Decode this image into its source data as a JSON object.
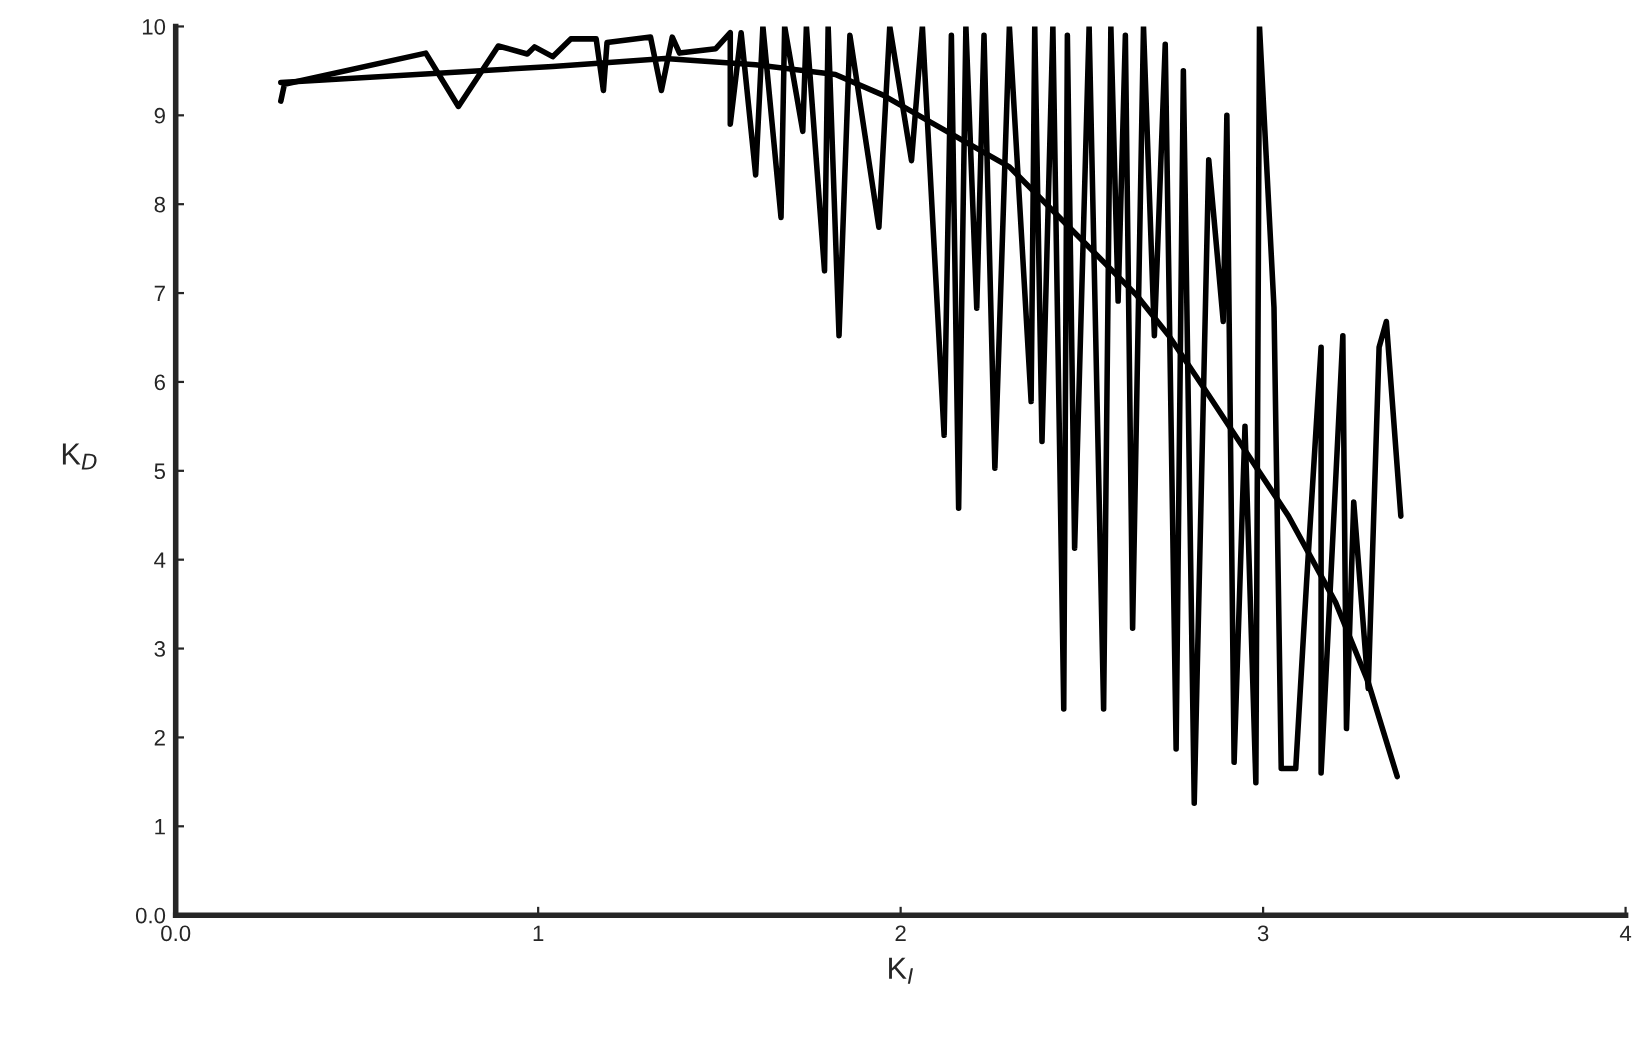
{
  "chart_data": {
    "type": "line",
    "xlabel": "K$_{I}$",
    "ylabel": "K$_{D}$",
    "xlim": [
      0,
      4
    ],
    "ylim": [
      0,
      10
    ],
    "xticks": [
      {
        "value": 0,
        "label": "0.0"
      },
      1,
      2,
      3,
      4
    ],
    "yticks": [
      {
        "value": 0,
        "label": "0.0"
      },
      1,
      2,
      3,
      4,
      5,
      6,
      7,
      8,
      9,
      10
    ],
    "grid": false,
    "marker": "none",
    "line_style": "solid",
    "series": [
      {
        "color": "#000000",
        "x": [
          0.29,
          0.3,
          0.69,
          0.78,
          0.89,
          0.97,
          0.99,
          1.04,
          1.09,
          1.16,
          1.18,
          1.19,
          1.31,
          1.34,
          1.37,
          1.39,
          1.49,
          1.53,
          1.53,
          1.56,
          1.6,
          1.62,
          1.67,
          1.68,
          1.73,
          1.74,
          1.79,
          1.8,
          1.83,
          1.86,
          1.94,
          1.97,
          2.03,
          2.06,
          2.12,
          2.14,
          2.16,
          2.18,
          2.21,
          2.23,
          2.26,
          2.3,
          2.36,
          2.37,
          2.39,
          2.42,
          2.45,
          2.46,
          2.48,
          2.52,
          2.56,
          2.58,
          2.6,
          2.62,
          2.64,
          2.67,
          2.7,
          2.73,
          2.76,
          2.78,
          2.81,
          2.85,
          2.89,
          2.9,
          2.92,
          2.95,
          2.98,
          2.99,
          3.03,
          3.05,
          3.09,
          3.12,
          3.16,
          3.16,
          3.22,
          3.23,
          3.25,
          3.29,
          3.32,
          3.34,
          3.38
        ],
        "values": [
          9.16,
          9.35,
          9.7,
          9.1,
          9.78,
          9.69,
          9.77,
          9.66,
          9.86,
          9.86,
          9.28,
          9.82,
          9.88,
          9.28,
          9.88,
          9.7,
          9.75,
          9.93,
          8.9,
          9.93,
          8.33,
          10,
          7.85,
          10,
          8.82,
          10,
          7.25,
          10,
          6.52,
          9.9,
          7.74,
          10,
          8.49,
          10,
          5.4,
          9.9,
          4.58,
          10,
          6.83,
          9.9,
          5.03,
          10,
          5.78,
          10,
          5.33,
          10,
          2.32,
          9.9,
          4.13,
          10,
          2.32,
          10,
          6.91,
          9.9,
          3.23,
          10,
          6.52,
          9.8,
          1.87,
          9.5,
          1.26,
          8.5,
          6.68,
          9.0,
          1.72,
          5.5,
          1.49,
          10,
          6.84,
          1.65,
          1.65,
          3.75,
          6.39,
          1.6,
          6.52,
          2.1,
          4.65,
          2.55,
          6.39,
          6.68,
          4.49
        ]
      },
      {
        "color": "#000000",
        "x": [
          0.29,
          1.04,
          1.35,
          1.6,
          1.82,
          1.95,
          2.3,
          2.65,
          2.74,
          2.85,
          2.96,
          3.07,
          3.2,
          3.29,
          3.37
        ],
        "values": [
          9.37,
          9.55,
          9.64,
          9.57,
          9.46,
          9.23,
          8.42,
          6.98,
          6.52,
          5.85,
          5.17,
          4.49,
          3.52,
          2.62,
          1.56
        ]
      }
    ]
  }
}
